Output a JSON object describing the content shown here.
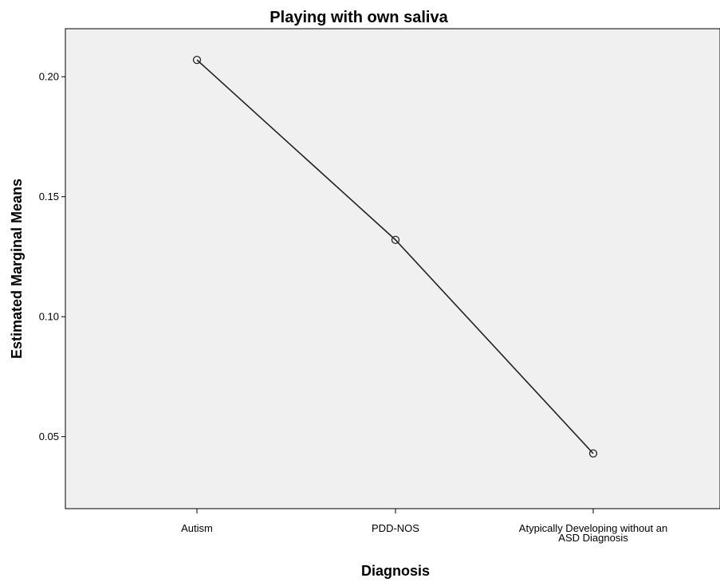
{
  "chart_data": {
    "type": "line",
    "title": "Playing with own saliva",
    "xlabel": "Diagnosis",
    "ylabel": "Estimated Marginal Means",
    "categories": [
      "Autism",
      "PDD-NOS",
      "Atypically Developing without an ASD Diagnosis"
    ],
    "category_label_lines": [
      [
        "Autism"
      ],
      [
        "PDD-NOS"
      ],
      [
        "Atypically Developing without an",
        "ASD Diagnosis"
      ]
    ],
    "series": [
      {
        "values": [
          0.207,
          0.132,
          0.043
        ]
      }
    ],
    "ylim": [
      0.02,
      0.22
    ],
    "yticks": [
      0.05,
      0.1,
      0.15,
      0.2
    ],
    "ytick_labels": [
      "0.05",
      "0.10",
      "0.15",
      "0.20"
    ],
    "grid": false,
    "marker": "open-circle",
    "colors": {
      "plot_background": "#f0f0f0",
      "line": "#222222",
      "axis": "#000000"
    }
  }
}
